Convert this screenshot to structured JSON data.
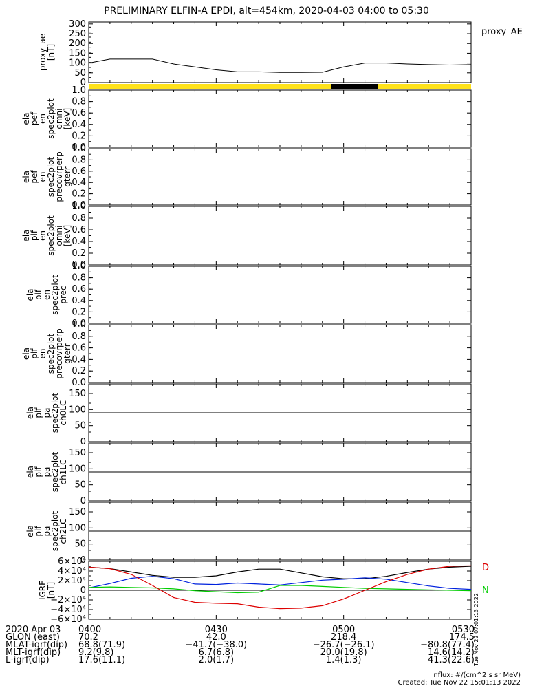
{
  "title": "PRELIMINARY ELFIN-A EPDI, alt=454km, 2020-04-03 04:00 to 05:30",
  "colors": {
    "axis": "#000000",
    "bar_yellow": "#ffe21a",
    "bar_black": "#000000",
    "red": "#dd0000",
    "green": "#00cc00",
    "blue": "#0022dd",
    "black": "#000000"
  },
  "chart_data": [
    {
      "id": "proxy_ae",
      "type": "line",
      "ylabel": [
        "proxy_ae",
        "[nT]"
      ],
      "legend": "proxy_AE",
      "ylim": [
        0,
        310
      ],
      "yticks": [
        0,
        50,
        100,
        150,
        200,
        250,
        300
      ],
      "xlim": [
        0,
        90
      ],
      "series": [
        {
          "x": [
            0,
            5,
            10,
            15,
            20,
            25,
            30,
            35,
            40,
            45,
            50,
            55,
            60,
            65,
            70,
            75,
            80,
            85,
            90
          ],
          "y": [
            100,
            120,
            120,
            120,
            95,
            80,
            65,
            55,
            55,
            52,
            52,
            53,
            80,
            100,
            100,
            95,
            92,
            90,
            92
          ]
        }
      ],
      "note_x_units": "minutes after 04:00"
    },
    {
      "id": "status_bar",
      "type": "bar",
      "segments": [
        {
          "from": 0,
          "to": 57,
          "color": "yellow"
        },
        {
          "from": 57,
          "to": 68,
          "color": "black"
        },
        {
          "from": 68,
          "to": 90,
          "color": "yellow"
        }
      ]
    },
    {
      "id": "pef_omni",
      "type": "line",
      "ylabel": [
        "ela",
        "pef",
        "en",
        "spec2plot",
        "omni",
        "[keV]"
      ],
      "ylim": [
        0,
        1
      ],
      "yticks": [
        "0.0",
        "0.2",
        "0.4",
        "0.6",
        "0.8",
        "1.0"
      ]
    },
    {
      "id": "pef_perp",
      "type": "line",
      "ylabel": [
        "ela",
        "pef",
        "en",
        "spec2plot",
        "precovrperp",
        "gterr"
      ],
      "ylim": [
        0,
        1
      ],
      "yticks": [
        "0.0",
        "0.2",
        "0.4",
        "0.6",
        "0.8",
        "1.0"
      ]
    },
    {
      "id": "pif_omni",
      "type": "line",
      "ylabel": [
        "ela",
        "pif",
        "en",
        "spec2plot",
        "omni",
        "[keV]"
      ],
      "ylim": [
        0,
        1
      ],
      "yticks": [
        "0.0",
        "0.2",
        "0.4",
        "0.6",
        "0.8",
        "1.0"
      ]
    },
    {
      "id": "pif_prec",
      "type": "line",
      "ylabel": [
        "ela",
        "pif",
        "en",
        "spec2plot",
        "prec"
      ],
      "ylim": [
        0,
        1
      ],
      "yticks": [
        "0.0",
        "0.2",
        "0.4",
        "0.6",
        "0.8",
        "1.0"
      ]
    },
    {
      "id": "pif_perp",
      "type": "line",
      "ylabel": [
        "ela",
        "pif",
        "en",
        "spec2plot",
        "precovrperp",
        "gterr"
      ],
      "ylim": [
        0,
        1
      ],
      "yticks": [
        "0.0",
        "0.2",
        "0.4",
        "0.6",
        "0.8",
        "1.0"
      ]
    },
    {
      "id": "pa_ch0",
      "type": "line",
      "ylabel": [
        "ela",
        "pif",
        "pa",
        "spec2plot",
        "ch0LC"
      ],
      "ylim": [
        0,
        180
      ],
      "yticks": [
        "0",
        "50",
        "100",
        "150"
      ],
      "hline": 90
    },
    {
      "id": "pa_ch1",
      "type": "line",
      "ylabel": [
        "ela",
        "pif",
        "pa",
        "spec2plot",
        "ch1LC"
      ],
      "ylim": [
        0,
        180
      ],
      "yticks": [
        "0",
        "50",
        "100",
        "150"
      ],
      "hline": 90
    },
    {
      "id": "pa_ch2",
      "type": "line",
      "ylabel": [
        "ela",
        "pif",
        "pa",
        "spec2plot",
        "ch2LC"
      ],
      "ylim": [
        0,
        180
      ],
      "yticks": [
        "0",
        "50",
        "100",
        "150"
      ],
      "hline": 90
    },
    {
      "id": "igrf",
      "type": "line",
      "ylabel": [
        "IGRF",
        "[nT]"
      ],
      "ylim": [
        -60000,
        60000
      ],
      "yticks": [
        {
          "v": 60000,
          "l": "6×10⁴"
        },
        {
          "v": 40000,
          "l": "4×10⁴"
        },
        {
          "v": 20000,
          "l": "2×10⁴"
        },
        {
          "v": 0,
          "l": "0"
        },
        {
          "v": -20000,
          "l": "−2×10⁴"
        },
        {
          "v": -40000,
          "l": "−4×10⁴"
        },
        {
          "v": -60000,
          "l": "−6×10⁴"
        }
      ],
      "legend": [
        {
          "label": "D",
          "color": "red"
        },
        {
          "label": "N",
          "color": "green"
        }
      ],
      "x": [
        0,
        5,
        10,
        15,
        20,
        25,
        30,
        35,
        40,
        45,
        50,
        55,
        60,
        65,
        70,
        75,
        80,
        85,
        90
      ],
      "series": [
        {
          "color": "black",
          "y": [
            48000,
            45000,
            38000,
            31000,
            27000,
            27000,
            30000,
            38000,
            44000,
            44000,
            36000,
            28000,
            24000,
            24000,
            29000,
            37000,
            44000,
            48000,
            50000
          ]
        },
        {
          "color": "blue",
          "y": [
            5000,
            14000,
            25000,
            29000,
            24000,
            13000,
            12000,
            15000,
            13000,
            11000,
            16000,
            21000,
            23000,
            26000,
            23000,
            16000,
            9000,
            4000,
            2000
          ]
        },
        {
          "color": "green",
          "y": [
            6000,
            7000,
            6000,
            5000,
            3000,
            -1000,
            -3000,
            -5000,
            -4000,
            10000,
            10000,
            8000,
            6000,
            4000,
            3000,
            2000,
            1000,
            0,
            -1000
          ]
        },
        {
          "color": "red",
          "y": [
            48000,
            45000,
            33000,
            10000,
            -15000,
            -25000,
            -27000,
            -28000,
            -35000,
            -38000,
            -37000,
            -32000,
            -18000,
            0,
            18000,
            33000,
            44000,
            50000,
            51000
          ]
        }
      ]
    }
  ],
  "xaxis": {
    "rows": [
      {
        "label": "2020 Apr 03",
        "values": [
          "0400",
          "0430",
          "0500",
          "0530"
        ]
      },
      {
        "label": "GLON (east)",
        "values": [
          "70.2",
          "42.0",
          "218.4",
          "174.5"
        ]
      },
      {
        "label": "MLAT-igrf(dip)",
        "values": [
          "68.8(71.9)",
          "−41.7(−38.0)",
          "−26.7(−26.1)",
          "−80.8(77.4)"
        ]
      },
      {
        "label": "MLT-igrf(dip)",
        "values": [
          "9.2(9.8)",
          "6.7(6.8)",
          "20.0(19.8)",
          "14.6(14.2)"
        ]
      },
      {
        "label": "L-igrf(dip)",
        "values": [
          "17.6(11.1)",
          "2.0(1.7)",
          "1.4(1.3)",
          "41.3(22.6)"
        ]
      }
    ]
  },
  "footer": {
    "nflux": "nflux: #/(cm^2 s sr MeV)",
    "created": "Created: Tue Nov 22 15:01:13 2022",
    "side_stamp": "Tue Nov 22 07:01:13 2022"
  }
}
